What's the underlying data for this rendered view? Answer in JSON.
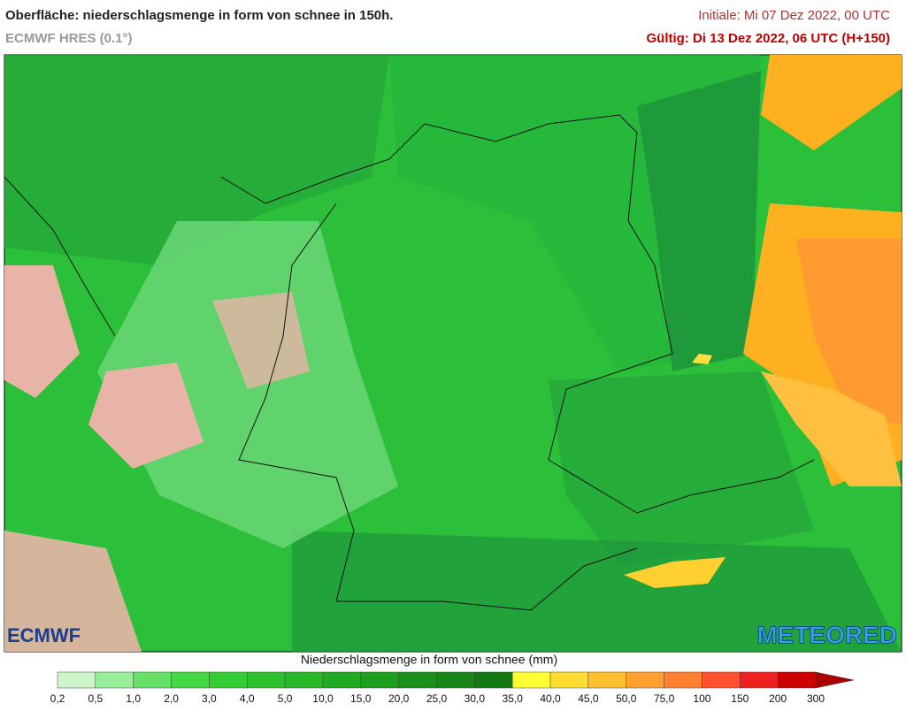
{
  "header": {
    "title": "Oberfläche: niederschlagsmenge in form von schnee in 150h.",
    "model": "ECMWF HRES (0.1°)",
    "initial": "Initiale: Mi 07 Dez 2022, 00 UTC",
    "valid": "Gültig: Di 13 Dez 2022, 06 UTC (H+150)"
  },
  "logos": {
    "left": "ECMWF",
    "right": "METEORED"
  },
  "legend": {
    "label": "Niederschlagsmenge in form von schnee (mm)",
    "ticks": [
      "0,2",
      "0,5",
      "1,0",
      "2,0",
      "3,0",
      "4,0",
      "5,0",
      "10,0",
      "15,0",
      "20,0",
      "25,0",
      "30,0",
      "35,0",
      "40,0",
      "45,0",
      "50,0",
      "75,0",
      "100",
      "150",
      "200",
      "300"
    ],
    "colors": [
      "#ccf5cc",
      "#99ee99",
      "#66e066",
      "#44d844",
      "#33cc33",
      "#2ec22e",
      "#28b828",
      "#22aa22",
      "#1e9e1e",
      "#1a901a",
      "#168416",
      "#127812",
      "#ffff33",
      "#ffdd33",
      "#ffc030",
      "#ffa030",
      "#ff8030",
      "#ff5030",
      "#ee2020",
      "#cc0000"
    ],
    "overflow_color": "#aa0000"
  }
}
